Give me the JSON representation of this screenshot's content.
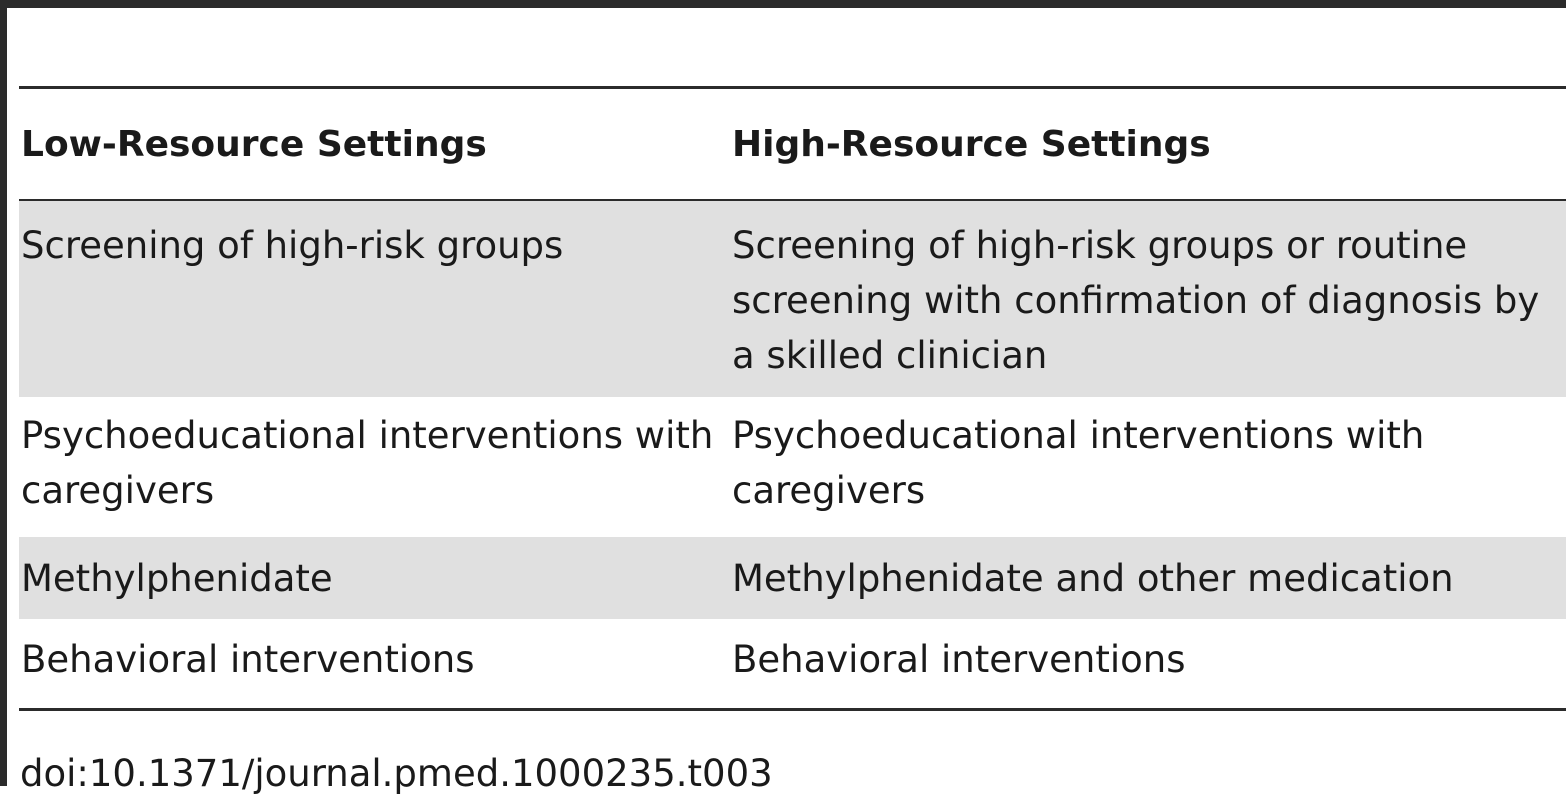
{
  "table": {
    "headers": [
      "Low-Resource Settings",
      "High-Resource Settings"
    ],
    "rows": [
      [
        "Screening of high-risk groups",
        "Screening of high-risk groups or routine screening with confirmation of diagnosis by a skilled clinician"
      ],
      [
        "Psychoeducational interventions with caregivers",
        "Psychoeducational interventions with caregivers"
      ],
      [
        "Methylphenidate",
        "Methylphenidate and other medication"
      ],
      [
        "Behavioral interventions",
        "Behavioral interventions"
      ]
    ]
  },
  "footer": {
    "doi": "doi:10.1371/journal.pmed.1000235.t003"
  },
  "colors": {
    "rule": "#2b2b2b",
    "shaded_row": "#e0e0e0",
    "text": "#1a1a1a"
  }
}
